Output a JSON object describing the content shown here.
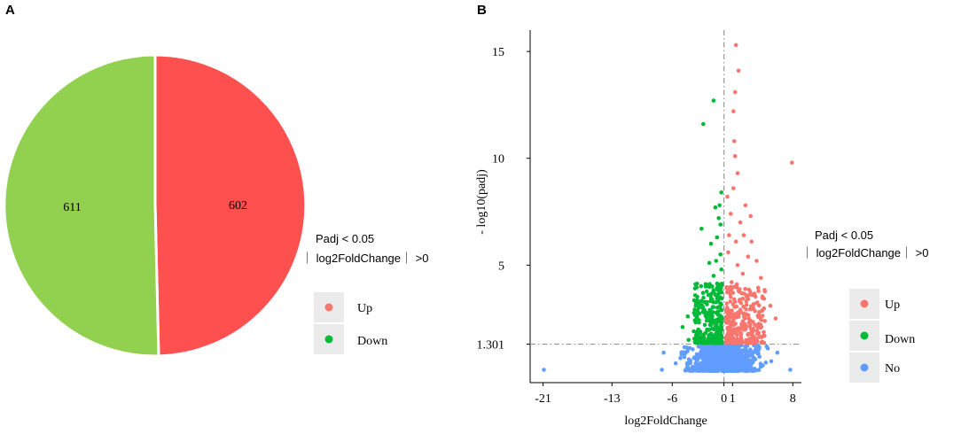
{
  "colors": {
    "pie_up": "#ff5050",
    "pie_down": "#92d050",
    "legend_up": "#f8766d",
    "legend_down": "#00ba38",
    "legend_no": "#619cff",
    "key_bg": "#ebebeb",
    "guide": "#999999"
  },
  "chart_data": [
    {
      "type": "pie",
      "panel_label": "A",
      "slices": [
        {
          "name": "Up",
          "value": 602
        },
        {
          "name": "Down",
          "value": 611
        }
      ],
      "legend": {
        "title_line1": "Padj < 0.05",
        "title_line2": "｜ log2FoldChange｜ >0",
        "entries": [
          "Up",
          "Down"
        ],
        "position": "right"
      }
    },
    {
      "type": "scatter",
      "panel_label": "B",
      "xlabel": "log2FoldChange",
      "ylabel": "- log10(padj)",
      "x_ticks": [
        -21,
        -13,
        -6,
        0,
        1,
        8
      ],
      "y_ticks": [
        15,
        10,
        5,
        1.301
      ],
      "xlim": [
        -22.5,
        9
      ],
      "ylim": [
        -0.5,
        16
      ],
      "threshold_y": 1.301,
      "threshold_x": 0,
      "legend": {
        "title_line1": "Padj < 0.05",
        "title_line2": "｜ log2FoldChange｜ >0",
        "entries": [
          "Up",
          "Down",
          "No"
        ],
        "position": "right"
      },
      "series": [
        {
          "name": "Up",
          "points": [
            [
              1.4,
              15.3
            ],
            [
              1.7,
              14.1
            ],
            [
              1.3,
              13.1
            ],
            [
              1.1,
              12.2
            ],
            [
              1.2,
              10.8
            ],
            [
              7.9,
              9.8
            ],
            [
              1.3,
              10.1
            ],
            [
              1.6,
              9.3
            ],
            [
              0.4,
              8.2
            ],
            [
              1.1,
              8.6
            ],
            [
              2.5,
              7.8
            ],
            [
              3.1,
              7.3
            ],
            [
              1.9,
              7.0
            ],
            [
              0.8,
              7.4
            ],
            [
              3.2,
              6.1
            ],
            [
              2.3,
              6.4
            ],
            [
              1.4,
              6.1
            ],
            [
              0.6,
              6.4
            ],
            [
              2.8,
              5.4
            ],
            [
              3.8,
              5.2
            ],
            [
              1.6,
              5.0
            ],
            [
              0.5,
              5.6
            ],
            [
              4.3,
              4.4
            ],
            [
              2.2,
              4.6
            ],
            [
              0.9,
              4.2
            ],
            [
              1.5,
              4.1
            ],
            [
              3.3,
              3.6
            ],
            [
              5.4,
              3.1
            ],
            [
              2.6,
              3.3
            ],
            [
              0.6,
              3.8
            ],
            [
              1.2,
              3.4
            ],
            [
              4.1,
              2.8
            ],
            [
              1.9,
              2.9
            ],
            [
              2.9,
              2.5
            ],
            [
              0.5,
              2.9
            ],
            [
              1.1,
              2.5
            ],
            [
              3.6,
              2.2
            ],
            [
              0.7,
              2.1
            ],
            [
              2.4,
              2.0
            ],
            [
              1.5,
              1.9
            ],
            [
              4.6,
              1.7
            ],
            [
              0.5,
              1.6
            ],
            [
              2.0,
              1.6
            ],
            [
              3.1,
              1.5
            ],
            [
              6.0,
              2.5
            ]
          ],
          "cloud": {
            "n": 260,
            "x_range": [
              0.25,
              4.8
            ],
            "y_range": [
              1.35,
              4.0
            ],
            "seed": 11
          }
        },
        {
          "name": "Down",
          "points": [
            [
              -1.2,
              12.7
            ],
            [
              -2.4,
              11.6
            ],
            [
              -0.3,
              8.4
            ],
            [
              -0.5,
              7.8
            ],
            [
              -0.6,
              7.2
            ],
            [
              -1.0,
              7.7
            ],
            [
              -0.4,
              6.9
            ],
            [
              -2.6,
              6.7
            ],
            [
              -0.8,
              6.3
            ],
            [
              -1.5,
              6.0
            ],
            [
              -0.4,
              5.5
            ],
            [
              -0.9,
              5.2
            ],
            [
              -1.7,
              5.1
            ],
            [
              -0.3,
              4.8
            ],
            [
              -3.3,
              4.1
            ],
            [
              -1.2,
              4.5
            ],
            [
              -2.1,
              4.0
            ],
            [
              -0.5,
              3.9
            ],
            [
              -1.8,
              3.6
            ],
            [
              -4.2,
              2.6
            ],
            [
              -0.7,
              3.3
            ],
            [
              -2.5,
              3.0
            ],
            [
              -3.1,
              2.7
            ],
            [
              -1.3,
              2.8
            ],
            [
              -0.4,
              2.6
            ],
            [
              -2.0,
              2.4
            ],
            [
              -4.8,
              2.1
            ],
            [
              -1.6,
              2.2
            ],
            [
              -0.8,
              2.1
            ],
            [
              -3.5,
              1.9
            ],
            [
              -0.5,
              1.7
            ],
            [
              -2.7,
              1.6
            ],
            [
              -1.1,
              1.6
            ],
            [
              -4.1,
              1.5
            ]
          ],
          "cloud": {
            "n": 240,
            "x_range": [
              -3.6,
              -0.25
            ],
            "y_range": [
              1.35,
              4.2
            ],
            "seed": 29
          }
        },
        {
          "name": "No",
          "points": [
            [
              -20.9,
              0.1
            ],
            [
              -7.2,
              0.1
            ],
            [
              7.7,
              0.1
            ],
            [
              -7.0,
              0.9
            ],
            [
              -5.6,
              0.4
            ],
            [
              -4.6,
              0.7
            ],
            [
              5.5,
              0.5
            ],
            [
              6.2,
              0.9
            ],
            [
              4.5,
              0.3
            ],
            [
              5.1,
              1.1
            ]
          ],
          "cloud": {
            "n": 900,
            "x_range": [
              -5.5,
              5.7
            ],
            "y_range": [
              0.05,
              1.28
            ],
            "seed": 47
          }
        }
      ]
    }
  ]
}
